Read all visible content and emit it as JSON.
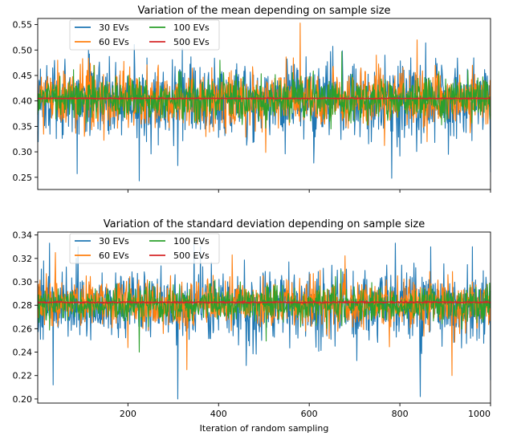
{
  "chart_data": [
    {
      "type": "line",
      "title": "Variation of the mean depending on sample size",
      "xlabel": "",
      "ylabel": "",
      "xlim": [
        1,
        1000
      ],
      "ylim": [
        0.226,
        0.562
      ],
      "x_ticks": [
        200,
        400,
        600,
        800,
        1000
      ],
      "x_tick_labels_shown": false,
      "y_ticks": [
        0.25,
        0.3,
        0.35,
        0.4,
        0.45,
        0.5,
        0.55
      ],
      "y_tick_labels": [
        "0.25",
        "0.30",
        "0.35",
        "0.40",
        "0.45",
        "0.50",
        "0.55"
      ],
      "grid": false,
      "legend_position": "upper-left",
      "legend_columns": 2,
      "n_points": 1000,
      "series": [
        {
          "name": "30 EVs",
          "color": "#1f77b4",
          "center": 0.403,
          "spread": 0.052,
          "min": 0.243,
          "max": 0.52,
          "extremes": [
            [
              88,
              0.257
            ],
            [
              113,
              0.5
            ],
            [
              225,
              0.243
            ],
            [
              310,
              0.273
            ],
            [
              345,
              0.455
            ],
            [
              610,
              0.278
            ],
            [
              647,
              0.497
            ],
            [
              782,
              0.248
            ],
            [
              845,
              0.47
            ],
            [
              1000,
              0.26
            ]
          ]
        },
        {
          "name": "60 EVs",
          "color": "#ff7f0e",
          "center": 0.403,
          "spread": 0.038,
          "min": 0.285,
          "max": 0.553,
          "extremes": [
            [
              45,
              0.48
            ],
            [
              110,
              0.46
            ],
            [
              580,
              0.553
            ],
            [
              748,
              0.49
            ],
            [
              838,
              0.52
            ],
            [
              860,
              0.32
            ],
            [
              960,
              0.47
            ]
          ]
        },
        {
          "name": "100 EVs",
          "color": "#2ca02c",
          "center": 0.403,
          "spread": 0.028,
          "min": 0.325,
          "max": 0.497,
          "extremes": [
            [
              125,
              0.47
            ],
            [
              403,
              0.48
            ],
            [
              672,
              0.497
            ],
            [
              950,
              0.46
            ]
          ]
        },
        {
          "name": "500 EVs",
          "color": "#d62728",
          "center": 0.405,
          "spread": 0.0008,
          "min": 0.403,
          "max": 0.407,
          "extremes": []
        }
      ]
    },
    {
      "type": "line",
      "title": "Variation of the standard deviation depending on sample size",
      "xlabel": "Iteration of random sampling",
      "ylabel": "",
      "xlim": [
        1,
        1000
      ],
      "ylim": [
        0.1965,
        0.3425
      ],
      "x_ticks": [
        200,
        400,
        600,
        800,
        1000
      ],
      "x_tick_labels": [
        "200",
        "400",
        "600",
        "800",
        "1000"
      ],
      "y_ticks": [
        0.2,
        0.22,
        0.24,
        0.26,
        0.28,
        0.3,
        0.32,
        0.34
      ],
      "y_tick_labels": [
        "0.20",
        "0.22",
        "0.24",
        "0.26",
        "0.28",
        "0.30",
        "0.32",
        "0.34"
      ],
      "grid": false,
      "legend_position": "upper-left",
      "legend_columns": 2,
      "n_points": 1000,
      "series": [
        {
          "name": "30 EVs",
          "color": "#1f77b4",
          "center": 0.281,
          "spread": 0.02,
          "min": 0.2,
          "max": 0.333,
          "extremes": [
            [
              35,
              0.212
            ],
            [
              90,
              0.33
            ],
            [
              310,
              0.2
            ],
            [
              360,
              0.33
            ],
            [
              790,
              0.333
            ],
            [
              845,
              0.202
            ],
            [
              960,
              0.33
            ],
            [
              1000,
              0.216
            ]
          ]
        },
        {
          "name": "60 EVs",
          "color": "#ff7f0e",
          "center": 0.281,
          "spread": 0.014,
          "min": 0.22,
          "max": 0.325,
          "extremes": [
            [
              40,
              0.325
            ],
            [
              330,
              0.225
            ],
            [
              430,
              0.323
            ],
            [
              915,
              0.22
            ]
          ]
        },
        {
          "name": "100 EVs",
          "color": "#2ca02c",
          "center": 0.281,
          "spread": 0.01,
          "min": 0.235,
          "max": 0.31,
          "extremes": [
            [
              670,
              0.31
            ],
            [
              225,
              0.24
            ]
          ]
        },
        {
          "name": "500 EVs",
          "color": "#d62728",
          "center": 0.2825,
          "spread": 0.0005,
          "min": 0.281,
          "max": 0.284,
          "extremes": []
        }
      ]
    }
  ]
}
